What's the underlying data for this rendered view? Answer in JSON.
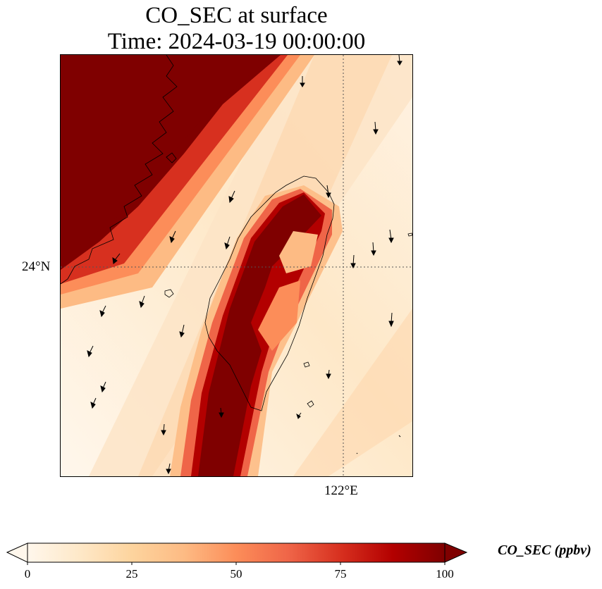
{
  "title": {
    "line1": "CO_SEC at surface",
    "line2": "Time: 2024-03-19 00:00:00"
  },
  "axes": {
    "lat_label": "24°N",
    "lon_label": "122°E"
  },
  "colorbar": {
    "label": "CO_SEC (ppbv)",
    "ticks": [
      "0",
      "25",
      "50",
      "75",
      "100"
    ],
    "range": [
      0,
      100
    ],
    "extend": "both",
    "colormap": "OrRd",
    "stops": [
      "#fff7ec",
      "#fee8c8",
      "#fdd49e",
      "#fdbb84",
      "#fc8d59",
      "#ef6548",
      "#d7301f",
      "#b30000",
      "#7f0000"
    ]
  },
  "map": {
    "gridlines": "dotted",
    "features": [
      "China coastline",
      "Taiwan island",
      "wind vectors"
    ]
  }
}
